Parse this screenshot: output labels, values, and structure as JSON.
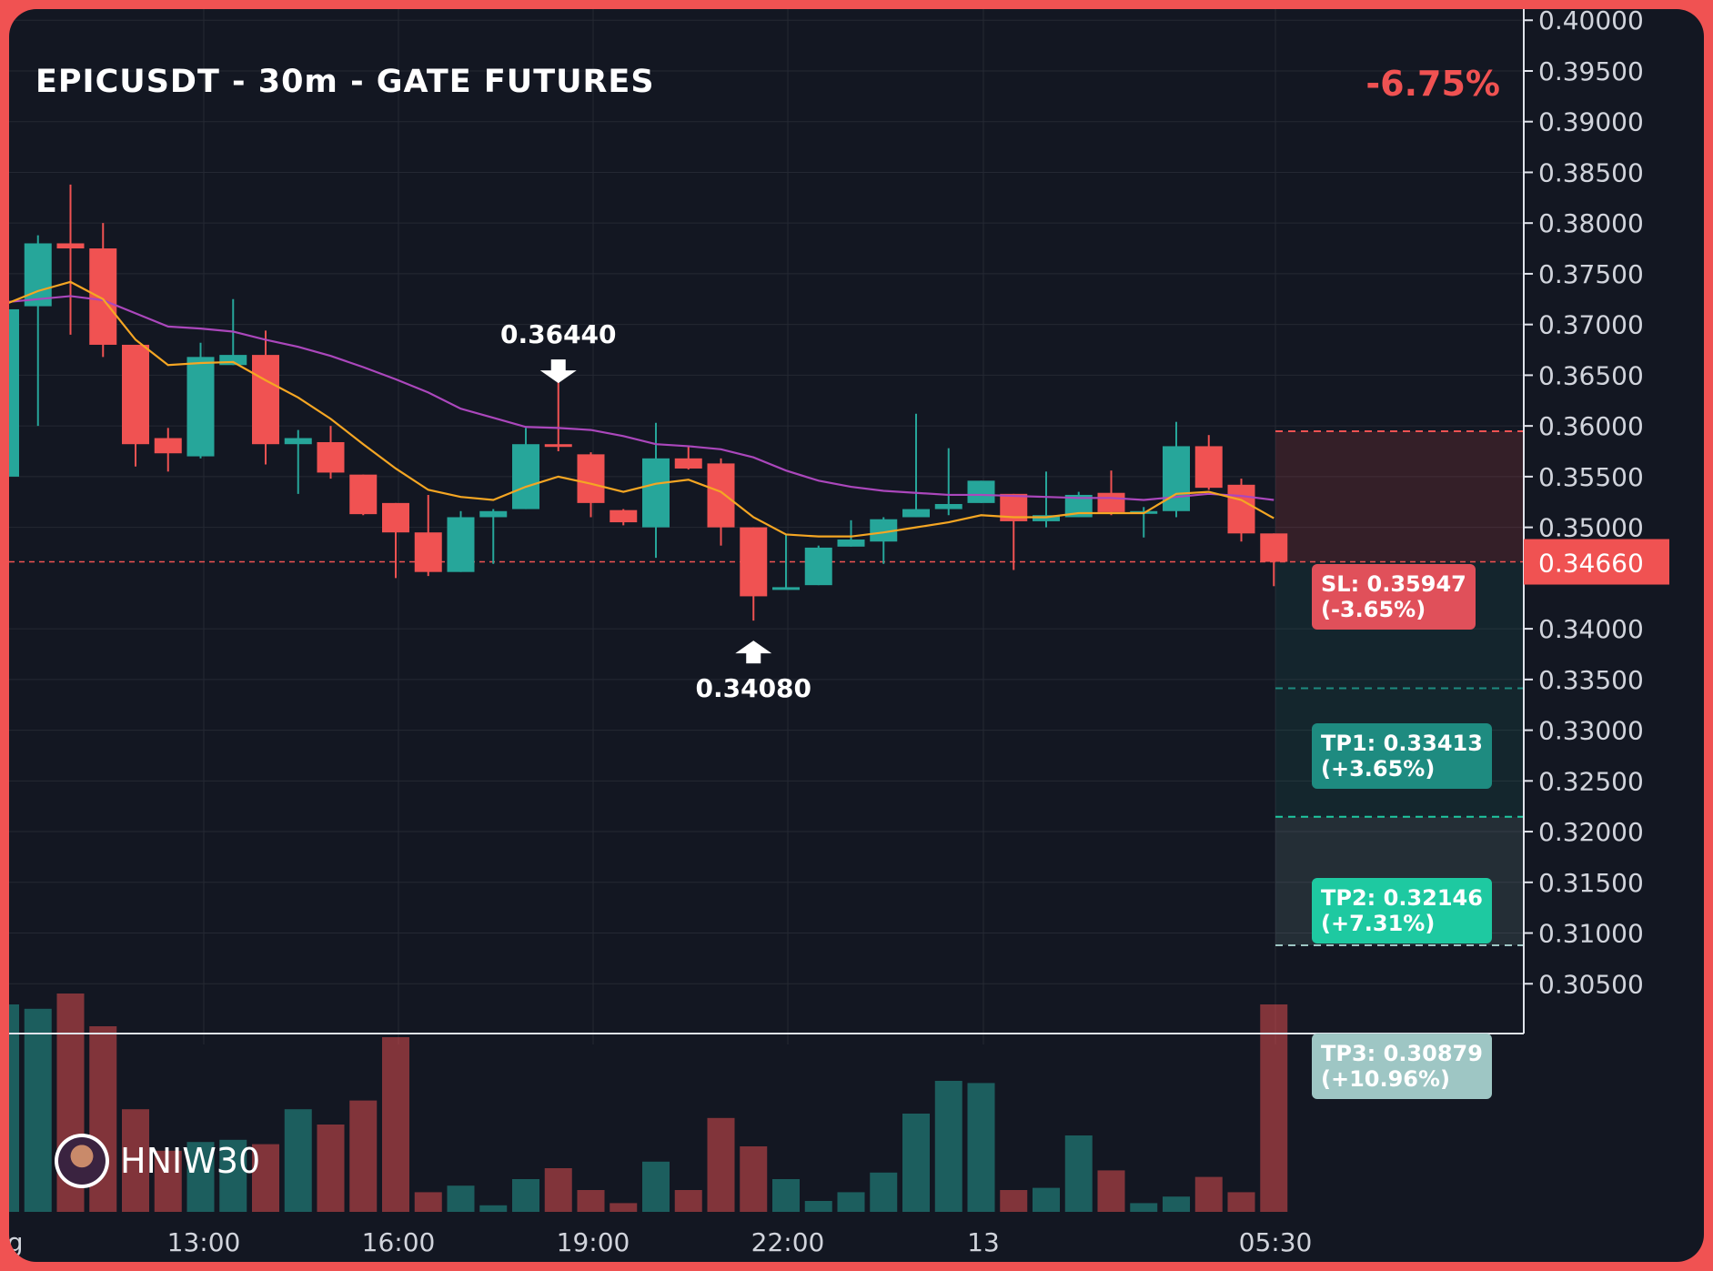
{
  "header": {
    "title": "EPICUSDT - 30m - GATE FUTURES",
    "change": "-6.75%"
  },
  "brand": {
    "name": "HNIW30"
  },
  "colors": {
    "up": "#26a69a",
    "down": "#f05252",
    "ema_fast": "#f5a623",
    "ema_slow": "#ab47bc",
    "background": "#131722"
  },
  "chart_data": {
    "type": "candlestick",
    "y_ticks": [
      "0.40000",
      "0.39500",
      "0.39000",
      "0.38500",
      "0.38000",
      "0.37500",
      "0.37000",
      "0.36500",
      "0.36000",
      "0.35500",
      "0.35000",
      "0.34000",
      "0.33500",
      "0.33000",
      "0.32500",
      "0.32000",
      "0.31500",
      "0.31000",
      "0.30500"
    ],
    "ylim": [
      0.3035,
      0.4002
    ],
    "x_ticks": [
      "ug",
      "13:00",
      "16:00",
      "19:00",
      "22:00",
      "13",
      "05:30"
    ],
    "last_price": "0.34660",
    "annotations": {
      "high": "0.36440",
      "low": "0.34080"
    },
    "levels": {
      "sl": {
        "label": "SL: 0.35947\n(-3.65%)",
        "price": 0.35947
      },
      "tp1": {
        "label": "TP1: 0.33413\n(+3.65%)",
        "price": 0.33413
      },
      "tp2": {
        "label": "TP2: 0.32146\n(+7.31%)",
        "price": 0.32146
      },
      "tp3": {
        "label": "TP3: 0.30879\n(+10.96%)",
        "price": 0.30879
      }
    },
    "candles": [
      {
        "o": 0.355,
        "h": 0.3715,
        "l": 0.355,
        "c": 0.3715,
        "v": 0.95
      },
      {
        "o": 0.3718,
        "h": 0.3788,
        "l": 0.36,
        "c": 0.378,
        "v": 0.93
      },
      {
        "o": 0.378,
        "h": 0.3838,
        "l": 0.369,
        "c": 0.3775,
        "v": 1.0
      },
      {
        "o": 0.3775,
        "h": 0.38,
        "l": 0.3668,
        "c": 0.368,
        "v": 0.85
      },
      {
        "o": 0.368,
        "h": 0.368,
        "l": 0.356,
        "c": 0.3582,
        "v": 0.47
      },
      {
        "o": 0.3588,
        "h": 0.3598,
        "l": 0.3555,
        "c": 0.3573,
        "v": 0.28
      },
      {
        "o": 0.357,
        "h": 0.3682,
        "l": 0.3568,
        "c": 0.3668,
        "v": 0.32
      },
      {
        "o": 0.366,
        "h": 0.3725,
        "l": 0.366,
        "c": 0.367,
        "v": 0.33
      },
      {
        "o": 0.367,
        "h": 0.3694,
        "l": 0.3562,
        "c": 0.3582,
        "v": 0.31
      },
      {
        "o": 0.3582,
        "h": 0.3596,
        "l": 0.3533,
        "c": 0.3588,
        "v": 0.47
      },
      {
        "o": 0.3584,
        "h": 0.36,
        "l": 0.3548,
        "c": 0.3554,
        "v": 0.4
      },
      {
        "o": 0.3552,
        "h": 0.3552,
        "l": 0.3512,
        "c": 0.3513,
        "v": 0.51
      },
      {
        "o": 0.3524,
        "h": 0.3524,
        "l": 0.345,
        "c": 0.3495,
        "v": 0.8
      },
      {
        "o": 0.3495,
        "h": 0.3532,
        "l": 0.3452,
        "c": 0.3456,
        "v": 0.09
      },
      {
        "o": 0.3456,
        "h": 0.3516,
        "l": 0.3456,
        "c": 0.351,
        "v": 0.12
      },
      {
        "o": 0.351,
        "h": 0.3518,
        "l": 0.3464,
        "c": 0.3516,
        "v": 0.03
      },
      {
        "o": 0.3518,
        "h": 0.3598,
        "l": 0.3518,
        "c": 0.3582,
        "v": 0.15
      },
      {
        "o": 0.3582,
        "h": 0.3644,
        "l": 0.3575,
        "c": 0.358,
        "v": 0.2
      },
      {
        "o": 0.3572,
        "h": 0.3574,
        "l": 0.351,
        "c": 0.3524,
        "v": 0.1
      },
      {
        "o": 0.3517,
        "h": 0.3518,
        "l": 0.3502,
        "c": 0.3505,
        "v": 0.04
      },
      {
        "o": 0.35,
        "h": 0.3603,
        "l": 0.347,
        "c": 0.3568,
        "v": 0.23
      },
      {
        "o": 0.3568,
        "h": 0.358,
        "l": 0.3557,
        "c": 0.3558,
        "v": 0.1
      },
      {
        "o": 0.3563,
        "h": 0.3568,
        "l": 0.3482,
        "c": 0.35,
        "v": 0.43
      },
      {
        "o": 0.35,
        "h": 0.35,
        "l": 0.3408,
        "c": 0.3432,
        "v": 0.3
      },
      {
        "o": 0.344,
        "h": 0.3493,
        "l": 0.344,
        "c": 0.3441,
        "v": 0.15
      },
      {
        "o": 0.3443,
        "h": 0.3482,
        "l": 0.3443,
        "c": 0.348,
        "v": 0.05
      },
      {
        "o": 0.3481,
        "h": 0.3507,
        "l": 0.3481,
        "c": 0.3488,
        "v": 0.09
      },
      {
        "o": 0.3486,
        "h": 0.351,
        "l": 0.3464,
        "c": 0.3508,
        "v": 0.18
      },
      {
        "o": 0.351,
        "h": 0.3612,
        "l": 0.351,
        "c": 0.3518,
        "v": 0.45
      },
      {
        "o": 0.3518,
        "h": 0.3578,
        "l": 0.3512,
        "c": 0.3523,
        "v": 0.6
      },
      {
        "o": 0.3524,
        "h": 0.3546,
        "l": 0.3524,
        "c": 0.3546,
        "v": 0.59
      },
      {
        "o": 0.3533,
        "h": 0.3533,
        "l": 0.3458,
        "c": 0.3506,
        "v": 0.1
      },
      {
        "o": 0.3506,
        "h": 0.3555,
        "l": 0.35,
        "c": 0.3512,
        "v": 0.11
      },
      {
        "o": 0.351,
        "h": 0.3535,
        "l": 0.351,
        "c": 0.3532,
        "v": 0.35
      },
      {
        "o": 0.3534,
        "h": 0.3556,
        "l": 0.3512,
        "c": 0.3515,
        "v": 0.19
      },
      {
        "o": 0.3515,
        "h": 0.352,
        "l": 0.349,
        "c": 0.3516,
        "v": 0.04
      },
      {
        "o": 0.3516,
        "h": 0.3604,
        "l": 0.351,
        "c": 0.358,
        "v": 0.07
      },
      {
        "o": 0.358,
        "h": 0.3591,
        "l": 0.3537,
        "c": 0.3539,
        "v": 0.16
      },
      {
        "o": 0.3542,
        "h": 0.3548,
        "l": 0.3486,
        "c": 0.3494,
        "v": 0.09
      },
      {
        "o": 0.3494,
        "h": 0.3494,
        "l": 0.3442,
        "c": 0.3466,
        "v": 0.95
      }
    ],
    "ema_fast": [
      0.372,
      0.3733,
      0.3742,
      0.3725,
      0.3685,
      0.366,
      0.3662,
      0.3663,
      0.3645,
      0.3628,
      0.3607,
      0.3582,
      0.3558,
      0.3537,
      0.353,
      0.3527,
      0.354,
      0.355,
      0.3543,
      0.3535,
      0.3543,
      0.3547,
      0.3535,
      0.351,
      0.3493,
      0.3491,
      0.3491,
      0.3495,
      0.35,
      0.3505,
      0.3512,
      0.351,
      0.351,
      0.3514,
      0.3514,
      0.3514,
      0.3533,
      0.3535,
      0.3527,
      0.3509
    ],
    "ema_slow": [
      0.3722,
      0.3725,
      0.3728,
      0.3724,
      0.3711,
      0.3698,
      0.3696,
      0.3693,
      0.3685,
      0.3678,
      0.3669,
      0.3658,
      0.3646,
      0.3633,
      0.3617,
      0.3608,
      0.3599,
      0.3598,
      0.3596,
      0.359,
      0.3582,
      0.358,
      0.3577,
      0.3569,
      0.3556,
      0.3546,
      0.354,
      0.3536,
      0.3534,
      0.3532,
      0.3532,
      0.3531,
      0.353,
      0.3529,
      0.3529,
      0.3527,
      0.353,
      0.3533,
      0.3531,
      0.3527
    ]
  }
}
